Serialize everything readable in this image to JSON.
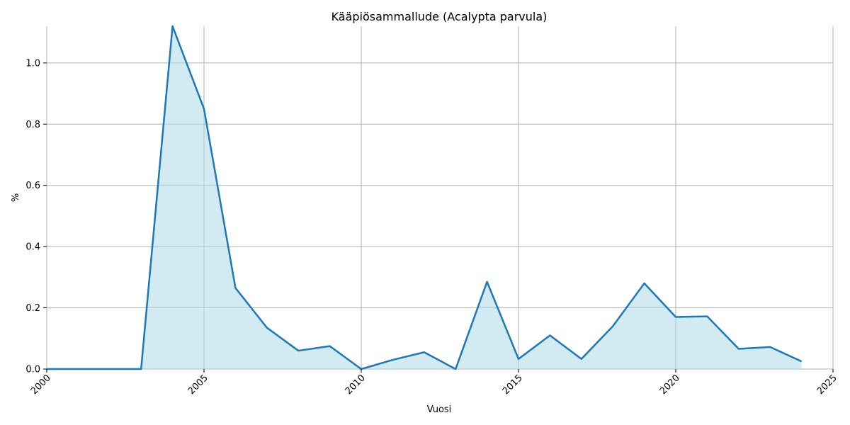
{
  "chart_data": {
    "type": "area",
    "title": "Kääpiösammallude (Acalypta parvula)",
    "xlabel": "Vuosi",
    "ylabel": "%",
    "xlim": [
      2000,
      2025
    ],
    "ylim": [
      0,
      1.12
    ],
    "x_ticks": [
      "2000",
      "2005",
      "2010",
      "2015",
      "2020",
      "2025"
    ],
    "y_ticks": [
      "0.0",
      "0.2",
      "0.4",
      "0.6",
      "0.8",
      "1.0"
    ],
    "grid": true,
    "line_color": "#1f77b4",
    "fill_color": "#add8e6",
    "series": [
      {
        "x": [
          2000,
          2001,
          2002,
          2003,
          2004,
          2005,
          2006,
          2007,
          2008,
          2009,
          2010,
          2011,
          2012,
          2013,
          2014,
          2015,
          2016,
          2017,
          2018,
          2019,
          2020,
          2021,
          2022,
          2023,
          2024
        ],
        "values": [
          0,
          0,
          0,
          0,
          1.12,
          0.85,
          0.265,
          0.135,
          0.06,
          0.075,
          0.0,
          0.03,
          0.055,
          0.0,
          0.285,
          0.033,
          0.11,
          0.033,
          0.14,
          0.28,
          0.17,
          0.172,
          0.066,
          0.072,
          0.025
        ]
      }
    ]
  }
}
